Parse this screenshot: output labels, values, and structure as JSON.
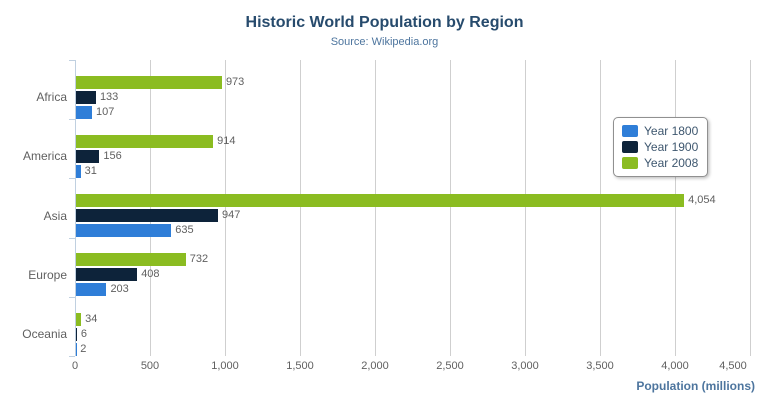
{
  "chart_data": {
    "type": "bar",
    "orientation": "horizontal",
    "title": "Historic World Population by Region",
    "subtitle": "Source: Wikipedia.org",
    "xlabel": "Population (millions)",
    "categories": [
      "Africa",
      "America",
      "Asia",
      "Europe",
      "Oceania"
    ],
    "series": [
      {
        "name": "Year 1800",
        "color": "#2f7ed8",
        "values": [
          107,
          31,
          635,
          203,
          2
        ]
      },
      {
        "name": "Year 1900",
        "color": "#0d233a",
        "values": [
          133,
          156,
          947,
          408,
          6
        ]
      },
      {
        "name": "Year 2008",
        "color": "#8bbc21",
        "values": [
          973,
          914,
          4054,
          732,
          34
        ]
      }
    ],
    "series_display_order_top_to_bottom": [
      "Year 2008",
      "Year 1900",
      "Year 1800"
    ],
    "xlim": [
      0,
      4500
    ],
    "x_tick_step": 500,
    "x_tick_labels": [
      "0",
      "500",
      "1,000",
      "1,500",
      "2,000",
      "2,500",
      "3,000",
      "3,500",
      "4,000",
      "4,500"
    ],
    "grid": true,
    "data_labels": true,
    "legend_position": "inside-right"
  },
  "export_menu": {
    "icon": "hamburger"
  },
  "palette": {
    "title": "#274b6d",
    "subtitle": "#4d759e",
    "axis_label": "#606060",
    "axis_title": "#4d759e",
    "gridline": "#cfcfcf",
    "category_axis_line": "#c0d0e0",
    "legend_border": "#909090",
    "legend_text": "#3E576F",
    "menu_icon": "#666666",
    "background": "#ffffff"
  }
}
